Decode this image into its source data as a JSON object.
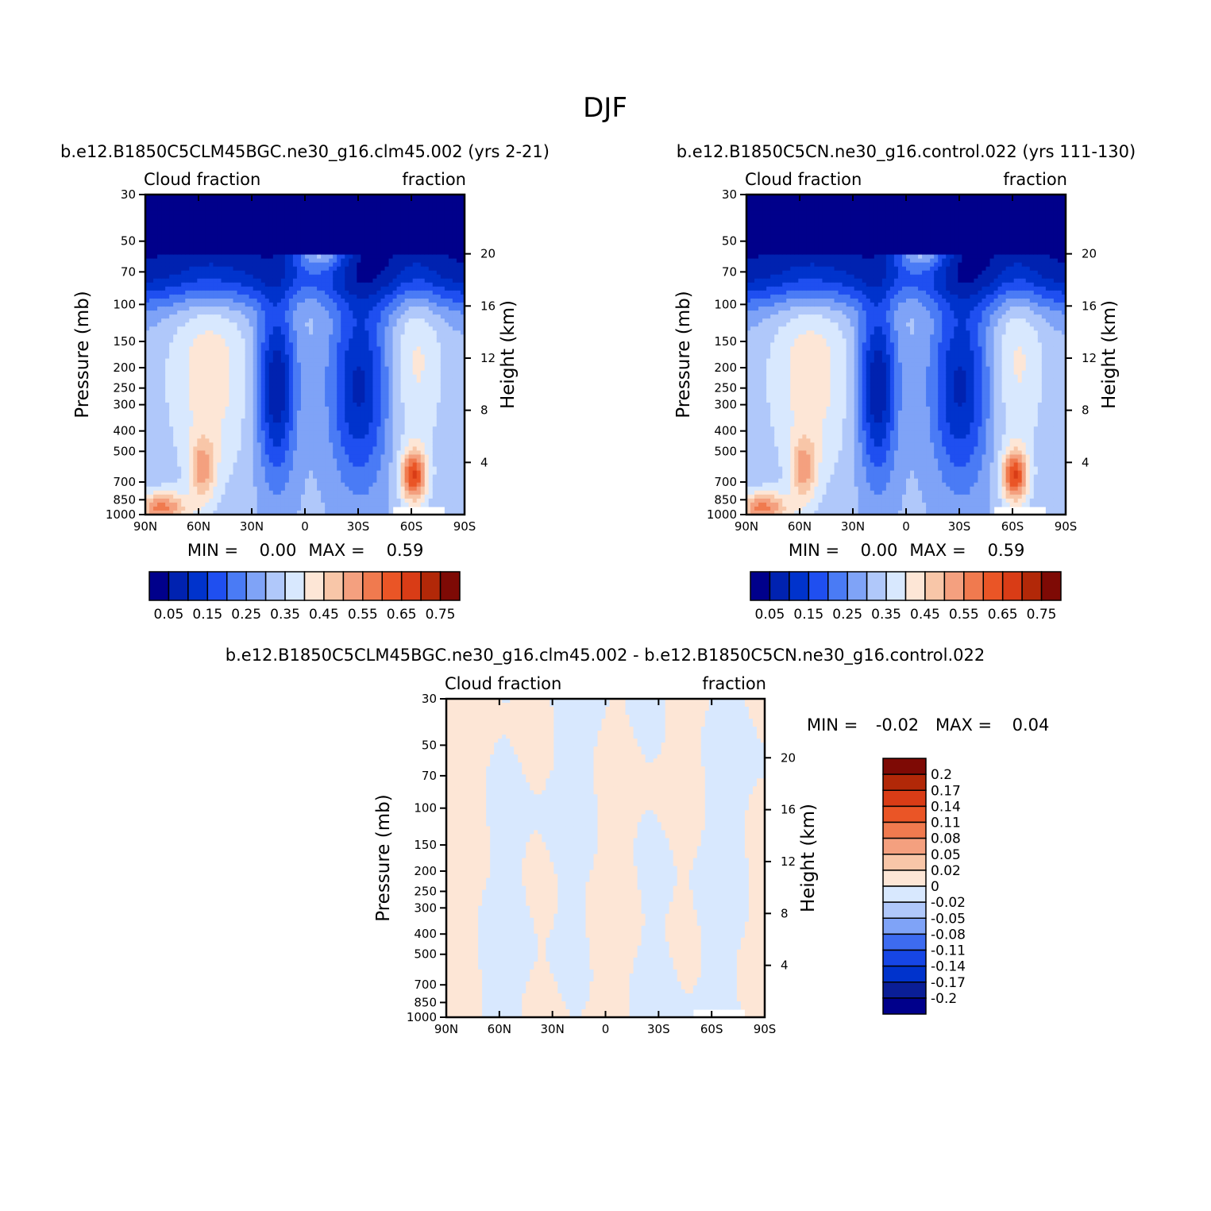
{
  "main_title": "DJF",
  "colors": {
    "cloud_levels": [
      "#00008b",
      "#0022b0",
      "#0033cc",
      "#1f4ff0",
      "#4a7bf5",
      "#7fa3f7",
      "#b0c8fa",
      "#d8e8fe",
      "#fde6d6",
      "#f8c6a8",
      "#f4a07f",
      "#f07a4f",
      "#ea5526",
      "#d93c16",
      "#b22808",
      "#7e0a05"
    ],
    "diff_levels": [
      "#00008b",
      "#0a1e96",
      "#0033cc",
      "#1646e5",
      "#3d6bf0",
      "#7fa3f7",
      "#b0c8fa",
      "#d8e8fe",
      "#fde6d6",
      "#f8c6a8",
      "#f4a07f",
      "#f07a4f",
      "#ea5526",
      "#d93c16",
      "#b22808",
      "#7e0a05"
    ]
  },
  "chart_data": [
    {
      "type": "heatmap",
      "title": "b.e12.B1850C5CLM45BGC.ne30_g16.clm45.002 (yrs 2-21)",
      "left_string": "Cloud fraction",
      "right_string": "fraction",
      "xlabel": "",
      "ylabel": "Pressure (mb)",
      "right_ylabel": "Height (km)",
      "x_ticks": [
        "90N",
        "60N",
        "30N",
        "0",
        "30S",
        "60S",
        "90S"
      ],
      "y_ticks": [
        "30",
        "50",
        "70",
        "100",
        "150",
        "200",
        "250",
        "300",
        "400",
        "500",
        "700",
        "850",
        "1000"
      ],
      "right_ticks": [
        "20",
        "16",
        "12",
        "8",
        "4"
      ],
      "stats": {
        "min_label": "MIN =",
        "min": "0.00",
        "max_label": "MAX =",
        "max": "0.59"
      },
      "colorbar_labels": [
        "0.05",
        "0.15",
        "0.25",
        "0.35",
        "0.45",
        "0.55",
        "0.65",
        "0.75"
      ],
      "levels": [
        0.05,
        0.1,
        0.15,
        0.2,
        0.25,
        0.3,
        0.35,
        0.4,
        0.45,
        0.5,
        0.55,
        0.6,
        0.65,
        0.7,
        0.75
      ],
      "range": [
        0.0,
        0.59
      ]
    },
    {
      "type": "heatmap",
      "title": "b.e12.B1850C5CN.ne30_g16.control.022 (yrs 111-130)",
      "left_string": "Cloud fraction",
      "right_string": "fraction",
      "xlabel": "",
      "ylabel": "Pressure (mb)",
      "right_ylabel": "Height (km)",
      "x_ticks": [
        "90N",
        "60N",
        "30N",
        "0",
        "30S",
        "60S",
        "90S"
      ],
      "y_ticks": [
        "30",
        "50",
        "70",
        "100",
        "150",
        "200",
        "250",
        "300",
        "400",
        "500",
        "700",
        "850",
        "1000"
      ],
      "right_ticks": [
        "20",
        "16",
        "12",
        "8",
        "4"
      ],
      "stats": {
        "min_label": "MIN =",
        "min": "0.00",
        "max_label": "MAX =",
        "max": "0.59"
      },
      "colorbar_labels": [
        "0.05",
        "0.15",
        "0.25",
        "0.35",
        "0.45",
        "0.55",
        "0.65",
        "0.75"
      ],
      "levels": [
        0.05,
        0.1,
        0.15,
        0.2,
        0.25,
        0.3,
        0.35,
        0.4,
        0.45,
        0.5,
        0.55,
        0.6,
        0.65,
        0.7,
        0.75
      ],
      "range": [
        0.0,
        0.59
      ]
    },
    {
      "type": "heatmap",
      "title": "b.e12.B1850C5CLM45BGC.ne30_g16.clm45.002 - b.e12.B1850C5CN.ne30_g16.control.022",
      "left_string": "Cloud fraction",
      "right_string": "fraction",
      "xlabel": "",
      "ylabel": "Pressure (mb)",
      "right_ylabel": "Height (km)",
      "x_ticks": [
        "90N",
        "60N",
        "30N",
        "0",
        "30S",
        "60S",
        "90S"
      ],
      "y_ticks": [
        "30",
        "50",
        "70",
        "100",
        "150",
        "200",
        "250",
        "300",
        "400",
        "500",
        "700",
        "850",
        "1000"
      ],
      "right_ticks": [
        "20",
        "16",
        "12",
        "8",
        "4"
      ],
      "stats": {
        "min_label": "MIN =",
        "min": "-0.02",
        "max_label": "MAX =",
        "max": "0.04"
      },
      "colorbar_labels": [
        "0.2",
        "0.17",
        "0.14",
        "0.11",
        "0.08",
        "0.05",
        "0.02",
        "0",
        "-0.02",
        "-0.05",
        "-0.08",
        "-0.11",
        "-0.14",
        "-0.17",
        "-0.2"
      ],
      "levels": [
        -0.2,
        -0.17,
        -0.14,
        -0.11,
        -0.08,
        -0.05,
        -0.02,
        0,
        0.02,
        0.05,
        0.08,
        0.11,
        0.14,
        0.17,
        0.2
      ],
      "range": [
        -0.02,
        0.04
      ]
    }
  ]
}
